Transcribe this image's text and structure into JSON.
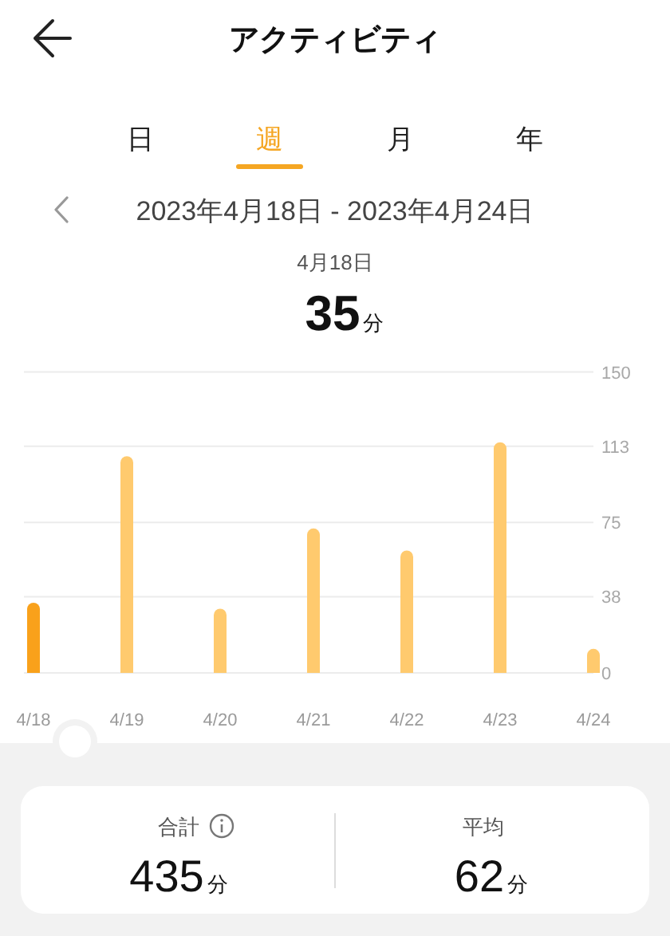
{
  "chart_data": {
    "type": "bar",
    "title": "アクティビティ",
    "subtitle": "2023年4月18日 - 2023年4月24日",
    "categories": [
      "4/18",
      "4/19",
      "4/20",
      "4/21",
      "4/22",
      "4/23",
      "4/24"
    ],
    "values": [
      35,
      108,
      32,
      72,
      61,
      115,
      12
    ],
    "colors": [
      "#f9a11b",
      "#ffca6e",
      "#ffca6e",
      "#ffca6e",
      "#ffca6e",
      "#ffca6e",
      "#ffca6e"
    ],
    "ylim": [
      0,
      150
    ],
    "yticks": [
      0,
      38,
      75,
      113,
      150
    ],
    "grid": "y",
    "annotations": [
      "日",
      "週",
      "月",
      "年",
      "4月18日",
      "35分",
      "合計",
      "435分",
      "平均",
      "62分"
    ]
  }
}
